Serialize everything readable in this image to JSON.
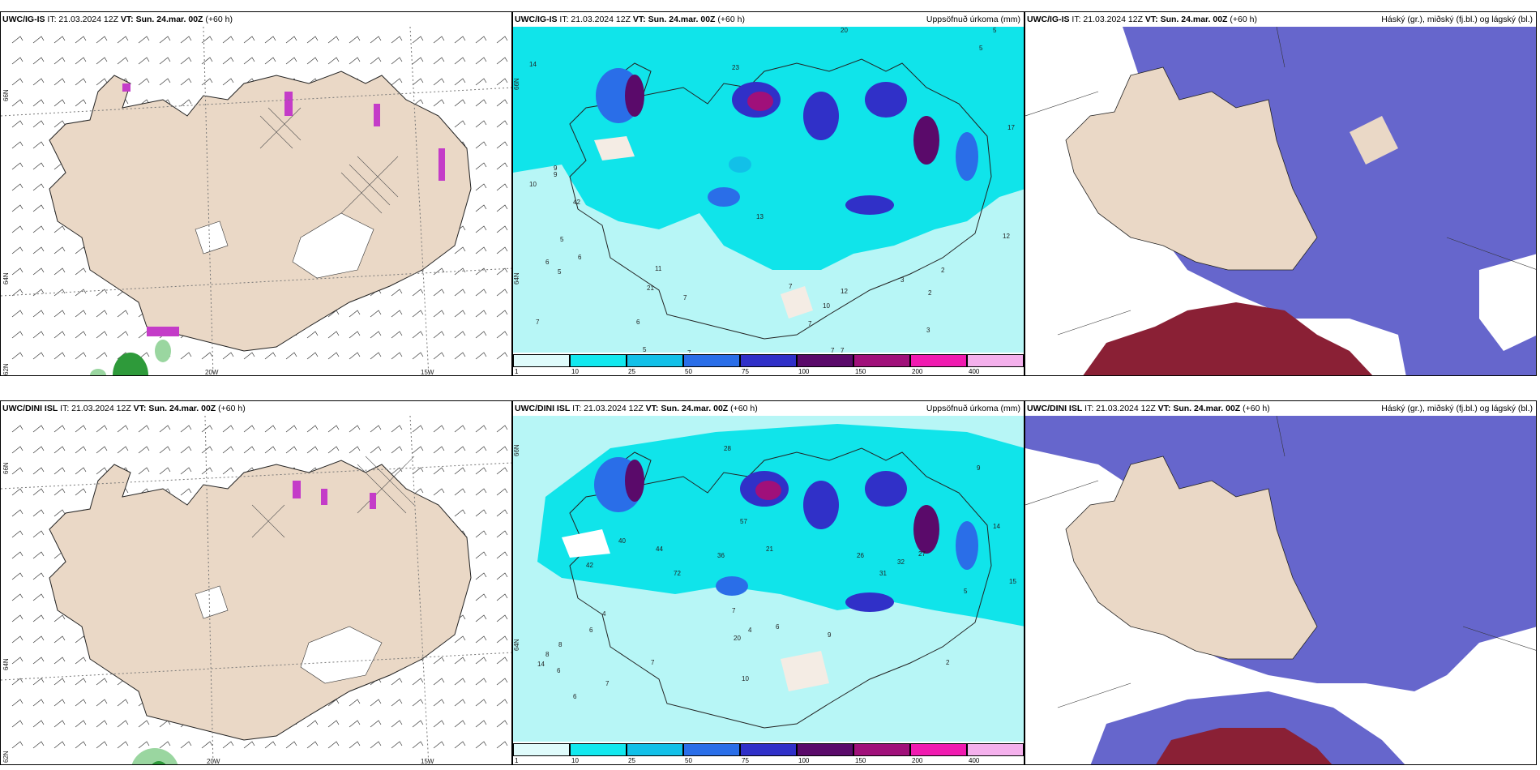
{
  "panels": {
    "r1c1": {
      "model": "UWC/IG-IS",
      "it": "IT: 21.03.2024 12Z",
      "vt_label": "VT:",
      "vt": "Sun. 24.mar. 00Z",
      "lead": "(+60 h)",
      "right": ""
    },
    "r1c2": {
      "model": "UWC/IG-IS",
      "it": "IT: 21.03.2024 12Z",
      "vt_label": "VT:",
      "vt": "Sun. 24.mar. 00Z",
      "lead": "(+60 h)",
      "right": "Uppsöfnuð úrkoma (mm)"
    },
    "r1c3": {
      "model": "UWC/IG-IS",
      "it": "IT: 21.03.2024 12Z",
      "vt_label": "VT:",
      "vt": "Sun. 24.mar. 00Z",
      "lead": "(+60 h)",
      "right": "Háský (gr.), miðský (fj.bl.) og lágský (bl.)"
    },
    "r2c1": {
      "model": "UWC/DINI ISL",
      "it": "IT: 21.03.2024 12Z",
      "vt_label": "VT:",
      "vt": "Sun. 24.mar. 00Z",
      "lead": "(+60 h)",
      "right": ""
    },
    "r2c2": {
      "model": "UWC/DINI ISL",
      "it": "IT: 21.03.2024 12Z",
      "vt_label": "VT:",
      "vt": "Sun. 24.mar. 00Z",
      "lead": "(+60 h)",
      "right": "Uppsöfnuð úrkoma (mm)"
    },
    "r2c3": {
      "model": "UWC/DINI ISL",
      "it": "IT: 21.03.2024 12Z",
      "vt_label": "VT:",
      "vt": "Sun. 24.mar. 00Z",
      "lead": "(+60 h)",
      "right": "Háský (gr.), miðský (fj.bl.) og lágský (bl.)"
    }
  },
  "axis_labels": {
    "lat66": "66N",
    "lat64": "64N",
    "lat62": "62N",
    "lon20": "20W",
    "lon15": "15W"
  },
  "colorbar": {
    "ticks": [
      "1",
      "10",
      "25",
      "50",
      "75",
      "100",
      "150",
      "200",
      "400"
    ],
    "colors": [
      "#dffbfb",
      "#12e8ee",
      "#12c0e8",
      "#2a6ee8",
      "#3030c8",
      "#5a0a6a",
      "#a0107a",
      "#f01ab0",
      "#f4b0ec"
    ]
  },
  "colors": {
    "land": "#ead8c6",
    "precip_base": "#b7f6f6",
    "precip_mid": "#10e4ea",
    "cloud_high": "#6666cc",
    "cloud_low": "#8a2035",
    "magenta": "#c43cc8",
    "green": "#2e9a3a"
  },
  "precip_values_top": [
    "14",
    "23",
    "20",
    "5",
    "5",
    "17",
    "10",
    "9",
    "42",
    "21",
    "5",
    "6",
    "7",
    "5",
    "11",
    "7",
    "12",
    "6",
    "9",
    "7",
    "3",
    "2",
    "2",
    "3",
    "5",
    "5",
    "7",
    "7",
    "7",
    "6",
    "10",
    "12",
    "7",
    "13"
  ],
  "precip_values_bottom": [
    "28",
    "9",
    "14",
    "15",
    "8",
    "8",
    "6",
    "4",
    "7",
    "6",
    "7",
    "10",
    "20",
    "44",
    "21",
    "36",
    "57",
    "42",
    "26",
    "31",
    "32",
    "27",
    "2",
    "5",
    "6",
    "7",
    "4",
    "9",
    "14",
    "6",
    "72",
    "40"
  ]
}
